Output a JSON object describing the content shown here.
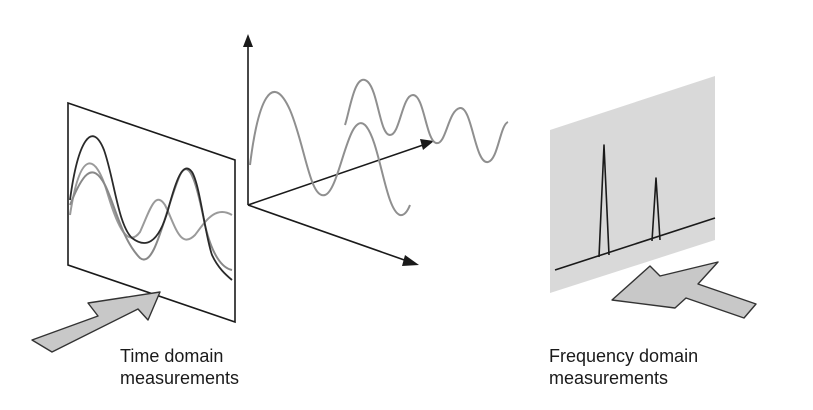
{
  "captions": {
    "time": {
      "line1": "Time domain",
      "line2": "measurements"
    },
    "frequency": {
      "line1": "Frequency domain",
      "line2": "measurements"
    }
  },
  "colors": {
    "line": "#1a1a1a",
    "wave_gray": "#8f8f8f",
    "wave_dark": "#2a2a2a",
    "panel_fill": "#d9d9d9",
    "arrow_fill": "#c8c8c8",
    "arrow_stroke": "#333333"
  },
  "icons": {
    "time_arrow": "block-arrow-right-icon",
    "frequency_arrow": "block-arrow-left-icon"
  }
}
